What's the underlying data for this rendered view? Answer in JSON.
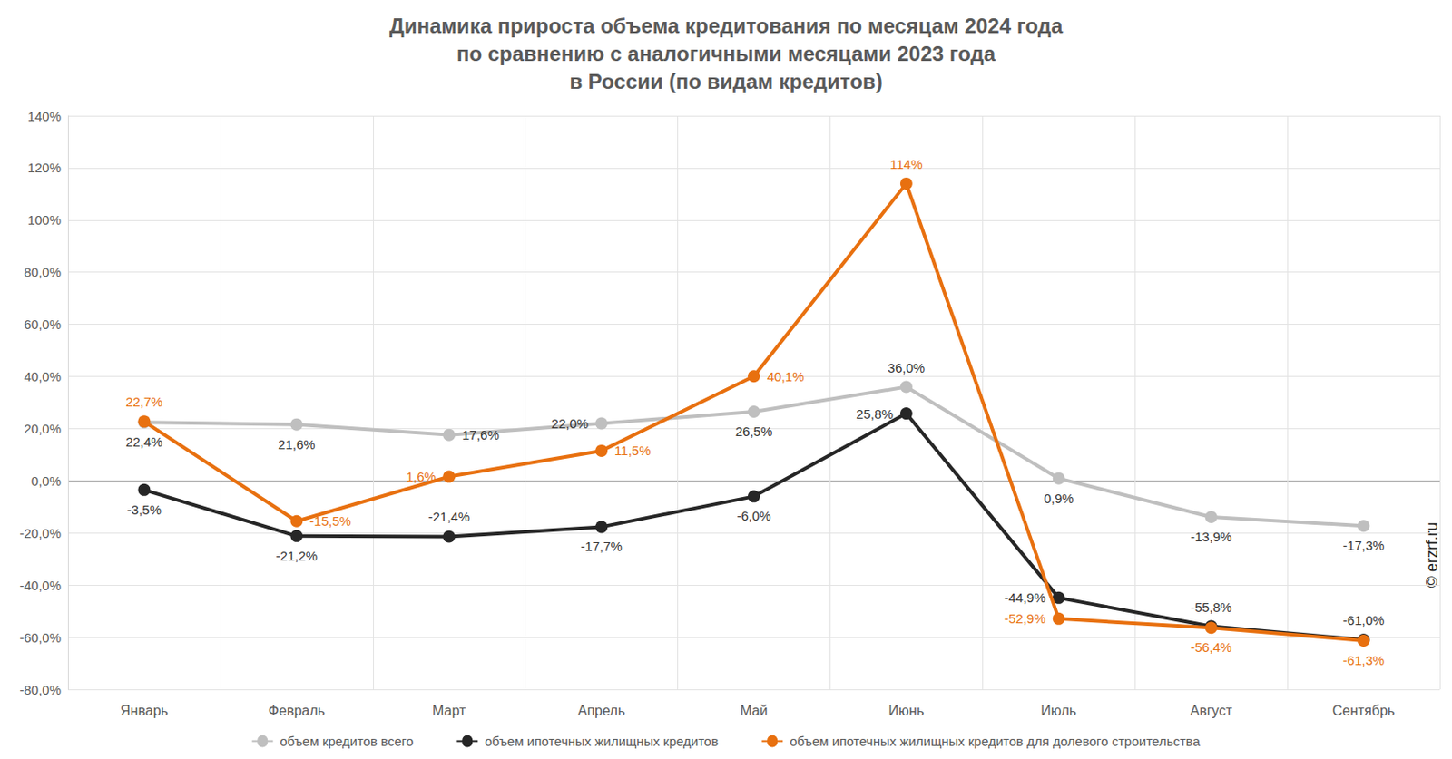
{
  "chart_data": {
    "type": "line",
    "title": "Динамика прироста объема кредитования по месяцам 2024 года\nпо сравнению с аналогичными месяцами 2023 года\nв России (по видам кредитов)",
    "categories": [
      "Январь",
      "Февраль",
      "Март",
      "Апрель",
      "Май",
      "Июнь",
      "Июль",
      "Август",
      "Сентябрь"
    ],
    "series": [
      {
        "name": "объем кредитов всего",
        "color": "#bfbfbf",
        "marker": "circle",
        "values": [
          22.4,
          21.6,
          17.6,
          22.0,
          26.5,
          36.0,
          0.9,
          -13.9,
          -17.3
        ],
        "value_labels": [
          "22,4%",
          "21,6%",
          "17,6%",
          "22,0%",
          "26,5%",
          "36,0%",
          "0,9%",
          "-13,9%",
          "-17,3%"
        ]
      },
      {
        "name": "объем ипотечных жилищных кредитов",
        "color": "#262626",
        "marker": "circle",
        "values": [
          -3.5,
          -21.2,
          -21.4,
          -17.7,
          -6.0,
          25.8,
          -44.9,
          -55.8,
          -61.0
        ],
        "value_labels": [
          "-3,5%",
          "-21,2%",
          "-21,4%",
          "-17,7%",
          "-6,0%",
          "25,8%",
          "-44,9%",
          "-55,8%",
          "-61,0%"
        ]
      },
      {
        "name": "объем ипотечных жилищных кредитов для долевого строительства",
        "color": "#e8700f",
        "marker": "circle",
        "values": [
          22.7,
          -15.5,
          1.6,
          11.5,
          40.1,
          114,
          -52.9,
          -56.4,
          -61.3
        ],
        "value_labels": [
          "22,7%",
          "-15,5%",
          "1,6%",
          "11,5%",
          "40,1%",
          "114%",
          "-52,9%",
          "-56,4%",
          "-61,3%"
        ]
      }
    ],
    "ylim": [
      -80,
      140
    ],
    "yticks": [
      {
        "value": -80,
        "label": "-80,0%"
      },
      {
        "value": -60,
        "label": "-60,0%"
      },
      {
        "value": -40,
        "label": "-40,0%"
      },
      {
        "value": -20,
        "label": "-20,0%"
      },
      {
        "value": 0,
        "label": "0,0%"
      },
      {
        "value": 20,
        "label": "20,0%"
      },
      {
        "value": 40,
        "label": "40,0%"
      },
      {
        "value": 60,
        "label": "60,0%"
      },
      {
        "value": 80,
        "label": "80,0%"
      },
      {
        "value": 100,
        "label": "100%"
      },
      {
        "value": 120,
        "label": "120%"
      },
      {
        "value": 140,
        "label": "140%"
      }
    ],
    "grid": true,
    "legend": "bottom",
    "data_labels": true,
    "annotations": [
      "© erzrf.ru"
    ]
  }
}
